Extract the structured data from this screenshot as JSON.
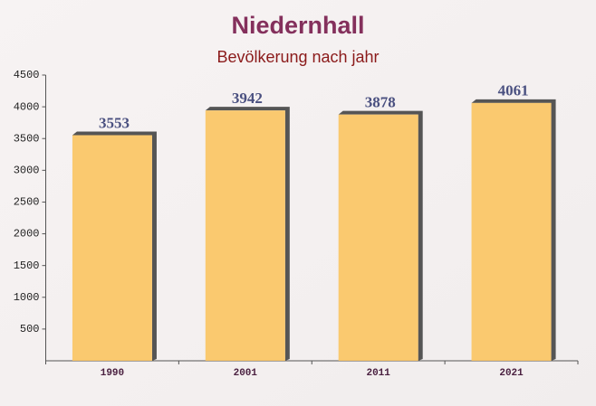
{
  "chart_data": {
    "type": "bar",
    "title": "Niedernhall",
    "subtitle": "Bevölkerung nach jahr",
    "categories": [
      "1990",
      "2001",
      "2011",
      "2021"
    ],
    "values": [
      3553,
      3942,
      3878,
      4061
    ],
    "color": "#fbc460",
    "ylim": [
      0,
      4500
    ],
    "yticks": [
      500,
      1000,
      1500,
      2000,
      2500,
      3000,
      3500,
      4000,
      4500
    ]
  }
}
